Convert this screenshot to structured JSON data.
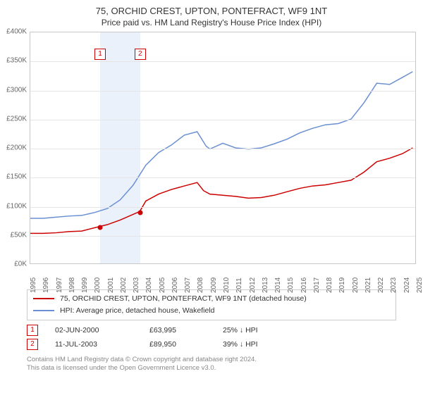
{
  "title": "75, ORCHID CREST, UPTON, PONTEFRACT, WF9 1NT",
  "subtitle": "Price paid vs. HM Land Registry's House Price Index (HPI)",
  "chart": {
    "type": "line",
    "background_color": "#ffffff",
    "grid_color": "#e5e5e5",
    "axis_color": "#c8c8c8",
    "tick_fontsize": 10,
    "tick_color": "#666666",
    "x_min_year": 1995,
    "x_max_year": 2025,
    "x_ticks": [
      1995,
      1996,
      1997,
      1998,
      1999,
      2000,
      2001,
      2002,
      2003,
      2004,
      2005,
      2006,
      2007,
      2008,
      2009,
      2010,
      2011,
      2012,
      2013,
      2014,
      2015,
      2016,
      2017,
      2018,
      2019,
      2020,
      2021,
      2022,
      2023,
      2024,
      2025
    ],
    "ylim": [
      0,
      400000
    ],
    "y_ticks": [
      0,
      50000,
      100000,
      150000,
      200000,
      250000,
      300000,
      350000,
      400000
    ],
    "y_tick_labels": [
      "£0K",
      "£50K",
      "£100K",
      "£150K",
      "£200K",
      "£250K",
      "£300K",
      "£350K",
      "£400K"
    ],
    "series": [
      {
        "name": "subject",
        "color": "#cc0000",
        "width": 1.5,
        "points": [
          [
            1995,
            52000
          ],
          [
            1996,
            52000
          ],
          [
            1997,
            53000
          ],
          [
            1998,
            55000
          ],
          [
            1999,
            56000
          ],
          [
            2000.42,
            63995
          ],
          [
            2001,
            67000
          ],
          [
            2002,
            75000
          ],
          [
            2003.53,
            89950
          ],
          [
            2004,
            108000
          ],
          [
            2005,
            120000
          ],
          [
            2006,
            128000
          ],
          [
            2007,
            134000
          ],
          [
            2008,
            140000
          ],
          [
            2008.5,
            126000
          ],
          [
            2009,
            120000
          ],
          [
            2010,
            118000
          ],
          [
            2011,
            116000
          ],
          [
            2012,
            113000
          ],
          [
            2013,
            114000
          ],
          [
            2014,
            118000
          ],
          [
            2015,
            124000
          ],
          [
            2016,
            130000
          ],
          [
            2017,
            134000
          ],
          [
            2018,
            136000
          ],
          [
            2019,
            140000
          ],
          [
            2020,
            144000
          ],
          [
            2021,
            158000
          ],
          [
            2022,
            176000
          ],
          [
            2023,
            182000
          ],
          [
            2024,
            190000
          ],
          [
            2024.8,
            200000
          ]
        ]
      },
      {
        "name": "hpi",
        "color": "#6a8fd3",
        "width": 1.5,
        "points": [
          [
            1995,
            78000
          ],
          [
            1996,
            78000
          ],
          [
            1997,
            80000
          ],
          [
            1998,
            82000
          ],
          [
            1999,
            83000
          ],
          [
            2000,
            88000
          ],
          [
            2001,
            95000
          ],
          [
            2002,
            110000
          ],
          [
            2003,
            135000
          ],
          [
            2004,
            170000
          ],
          [
            2005,
            192000
          ],
          [
            2006,
            205000
          ],
          [
            2007,
            222000
          ],
          [
            2008,
            228000
          ],
          [
            2008.7,
            203000
          ],
          [
            2009,
            198000
          ],
          [
            2010,
            208000
          ],
          [
            2011,
            200000
          ],
          [
            2012,
            198000
          ],
          [
            2013,
            200000
          ],
          [
            2014,
            207000
          ],
          [
            2015,
            215000
          ],
          [
            2016,
            226000
          ],
          [
            2017,
            234000
          ],
          [
            2018,
            240000
          ],
          [
            2019,
            242000
          ],
          [
            2020,
            250000
          ],
          [
            2021,
            278000
          ],
          [
            2022,
            312000
          ],
          [
            2023,
            310000
          ],
          [
            2024,
            322000
          ],
          [
            2024.8,
            332000
          ]
        ]
      }
    ],
    "sale_band": {
      "color": "#eaf1fb",
      "from_year": 2000.42,
      "to_year": 2003.53
    },
    "sale_markers": [
      {
        "n": 1,
        "year": 2000.42,
        "price": 63995
      },
      {
        "n": 2,
        "year": 2003.53,
        "price": 89950
      }
    ],
    "sale_number_y": 363000
  },
  "legend": {
    "items": [
      {
        "color": "#cc0000",
        "text": "75, ORCHID CREST, UPTON, PONTEFRACT, WF9 1NT (detached house)"
      },
      {
        "color": "#6a8fd3",
        "text": "HPI: Average price, detached house, Wakefield"
      }
    ]
  },
  "sales_table": [
    {
      "n": "1",
      "date": "02-JUN-2000",
      "price": "£63,995",
      "delta": "25% ↓ HPI"
    },
    {
      "n": "2",
      "date": "11-JUL-2003",
      "price": "£89,950",
      "delta": "39% ↓ HPI"
    }
  ],
  "attribution": {
    "line1": "Contains HM Land Registry data © Crown copyright and database right 2024.",
    "line2": "This data is licensed under the Open Government Licence v3.0."
  }
}
